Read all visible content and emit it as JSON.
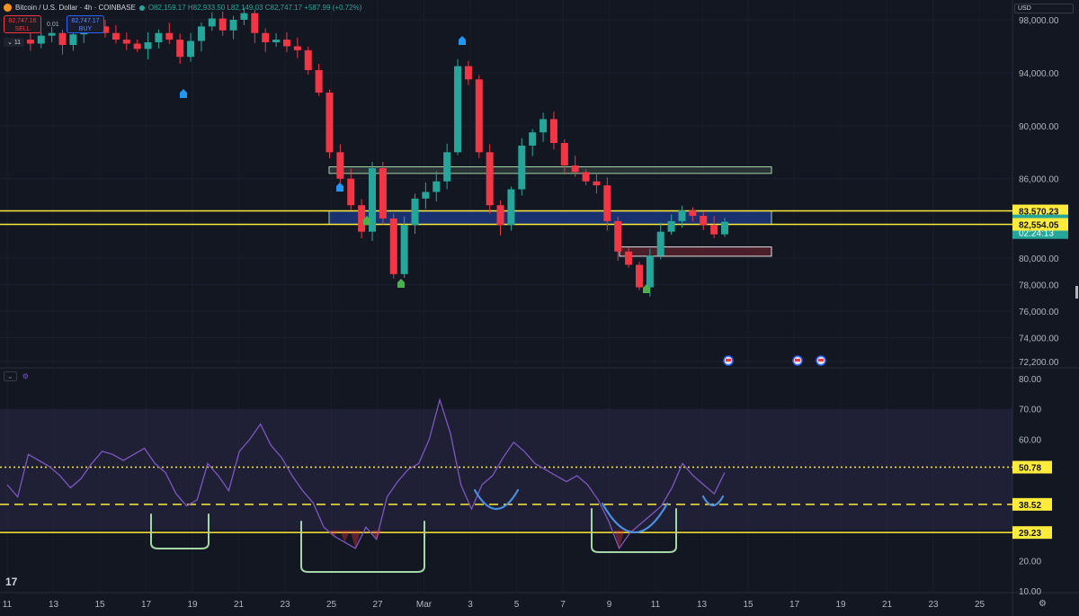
{
  "legend": {
    "symbol": "Bitcoin / U.S. Dollar · 4h · COINBASE",
    "ohlc": "O82,159.17 H82,933.50 L82,149.03 C82,747.17 +587.99 (+0.72%)"
  },
  "trade": {
    "sell_price": "82,747.16",
    "sell_label": "SELL",
    "buy_price": "82,747.17",
    "buy_label": "BUY",
    "spread": "0.01",
    "lots": "11"
  },
  "currency": "USD",
  "colors": {
    "background": "#131722",
    "up": "#26a69a",
    "down": "#f23645",
    "level": "#ffeb3b",
    "rsi": "#7e57c2",
    "green_zone": "#a5d6a7",
    "blue_zone": "#2962ff"
  },
  "chart_data": [
    {
      "type": "candlestick",
      "price_axis": {
        "ticks": [
          "98,000.00",
          "94,000.00",
          "90,000.00",
          "86,000.00",
          "80,000.00",
          "78,000.00",
          "76,000.00",
          "74,000.00",
          "72,200.00"
        ],
        "tick_values": [
          98000,
          94000,
          90000,
          86000,
          80000,
          78000,
          76000,
          74000,
          72200
        ]
      },
      "time_axis": {
        "ticks": [
          "11",
          "13",
          "15",
          "17",
          "19",
          "21",
          "23",
          "25",
          "27",
          "Mar",
          "3",
          "5",
          "7",
          "9",
          "11",
          "13",
          "15",
          "17",
          "19",
          "21",
          "23",
          "25"
        ]
      },
      "price_labels": [
        {
          "text": "83,570.23",
          "style": "level"
        },
        {
          "text": "82,747.17",
          "style": "last"
        },
        {
          "text": "02:24:13",
          "style": "last"
        },
        {
          "text": "82,554.05",
          "style": "level"
        }
      ],
      "levels": [
        83570.23,
        82554.05
      ],
      "zones": [
        {
          "color": "green",
          "from": 86400,
          "to": 86900
        },
        {
          "color": "blue",
          "from": 82554.05,
          "to": 83570.23
        },
        {
          "color": "red",
          "from": 80150,
          "to": 80850
        }
      ],
      "close_path": [
        96500,
        96200,
        96800,
        97000,
        96100,
        96900,
        97400,
        97500,
        97000,
        96500,
        96200,
        95800,
        96300,
        97000,
        96500,
        95200,
        96400,
        97500,
        98100,
        97200,
        98000,
        98500,
        97000,
        96300,
        96500,
        96000,
        95700,
        94200,
        92500,
        88000,
        86000,
        84000,
        82000,
        86800,
        83000,
        78800,
        82500,
        84500,
        85000,
        85800,
        88000,
        94500,
        93500,
        88000,
        84000,
        82500,
        85200,
        88500,
        89500,
        90500,
        88700,
        87000,
        86500,
        85800,
        85500,
        82800,
        80500,
        79500,
        77800,
        80200,
        82000,
        82800,
        83600,
        83200,
        82500,
        81800,
        82747
      ]
    },
    {
      "type": "line",
      "indicator": "RSI",
      "y_axis": {
        "ticks": [
          "80.00",
          "70.00",
          "60.00",
          "50.78",
          "38.52",
          "29.23",
          "20.00",
          "10.00"
        ],
        "tick_values": [
          80,
          70,
          60,
          50.78,
          38.52,
          29.23,
          20,
          10
        ]
      },
      "levels": [
        50.78,
        38.52,
        29.23
      ],
      "band": [
        30,
        70
      ],
      "values": [
        45,
        41,
        55,
        53,
        51,
        48,
        44,
        47,
        52,
        56,
        55,
        53,
        55,
        57,
        52,
        49,
        42,
        38,
        40,
        52,
        48,
        43,
        56,
        60,
        65,
        58,
        54,
        48,
        43,
        39,
        31,
        28,
        26,
        24,
        31,
        27,
        41,
        46,
        50,
        52,
        60,
        73,
        62,
        45,
        37,
        45,
        48,
        54,
        59,
        56,
        52,
        50,
        48,
        46,
        48,
        45,
        40,
        33,
        24,
        29,
        32,
        35,
        38,
        44,
        52,
        48,
        45,
        42,
        49
      ]
    }
  ]
}
